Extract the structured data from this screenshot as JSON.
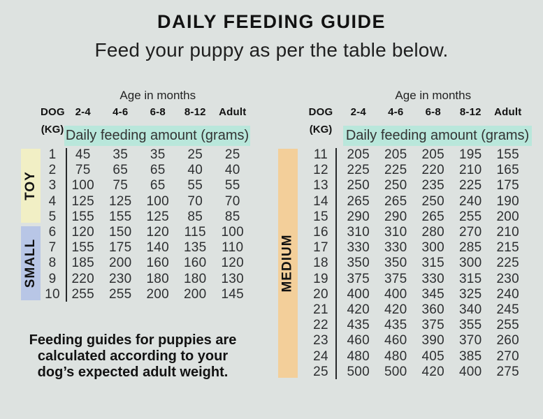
{
  "page": {
    "title": "DAILY FEEDING GUIDE",
    "subtitle": "Feed your puppy as per the table below.",
    "footer_note": "Feeding guides for puppies are calculated according to your dog’s expected adult weight."
  },
  "colors": {
    "background": "#dde2e0",
    "highlight": "#b9e7db",
    "toy": "#f1efc5",
    "small": "#b8c6e6",
    "medium": "#f3cf9a",
    "text": "#1d1d1d"
  },
  "tables": [
    {
      "age_header": "Age in months",
      "dog_label": "DOG",
      "kg_label": "(KG)",
      "age_columns": [
        "2-4",
        "4-6",
        "6-8",
        "8-12",
        "Adult"
      ],
      "amount_label": "Daily feeding amount (grams)",
      "groups": [
        {
          "label": "TOY",
          "color": "toy",
          "row_span": 5
        },
        {
          "label": "SMALL",
          "color": "small",
          "row_span": 5
        }
      ],
      "rows": [
        {
          "kg": "1",
          "values": [
            "45",
            "35",
            "35",
            "25",
            "25"
          ]
        },
        {
          "kg": "2",
          "values": [
            "75",
            "65",
            "65",
            "40",
            "40"
          ]
        },
        {
          "kg": "3",
          "values": [
            "100",
            "75",
            "65",
            "55",
            "55"
          ]
        },
        {
          "kg": "4",
          "values": [
            "125",
            "125",
            "100",
            "70",
            "70"
          ]
        },
        {
          "kg": "5",
          "values": [
            "155",
            "155",
            "125",
            "85",
            "85"
          ]
        },
        {
          "kg": "6",
          "values": [
            "120",
            "150",
            "120",
            "115",
            "100"
          ]
        },
        {
          "kg": "7",
          "values": [
            "155",
            "175",
            "140",
            "135",
            "110"
          ]
        },
        {
          "kg": "8",
          "values": [
            "185",
            "200",
            "160",
            "160",
            "120"
          ]
        },
        {
          "kg": "9",
          "values": [
            "220",
            "230",
            "180",
            "180",
            "130"
          ]
        },
        {
          "kg": "10",
          "values": [
            "255",
            "255",
            "200",
            "200",
            "145"
          ]
        }
      ]
    },
    {
      "age_header": "Age in months",
      "dog_label": "DOG",
      "kg_label": "(KG)",
      "age_columns": [
        "2-4",
        "4-6",
        "6-8",
        "8-12",
        "Adult"
      ],
      "amount_label": "Daily feeding amount (grams)",
      "groups": [
        {
          "label": "MEDIUM",
          "color": "medium",
          "row_span": 15
        }
      ],
      "rows": [
        {
          "kg": "11",
          "values": [
            "205",
            "205",
            "205",
            "195",
            "155"
          ]
        },
        {
          "kg": "12",
          "values": [
            "225",
            "225",
            "220",
            "210",
            "165"
          ]
        },
        {
          "kg": "13",
          "values": [
            "250",
            "250",
            "235",
            "225",
            "175"
          ]
        },
        {
          "kg": "14",
          "values": [
            "265",
            "265",
            "250",
            "240",
            "190"
          ]
        },
        {
          "kg": "15",
          "values": [
            "290",
            "290",
            "265",
            "255",
            "200"
          ]
        },
        {
          "kg": "16",
          "values": [
            "310",
            "310",
            "280",
            "270",
            "210"
          ]
        },
        {
          "kg": "17",
          "values": [
            "330",
            "330",
            "300",
            "285",
            "215"
          ]
        },
        {
          "kg": "18",
          "values": [
            "350",
            "350",
            "315",
            "300",
            "225"
          ]
        },
        {
          "kg": "19",
          "values": [
            "375",
            "375",
            "330",
            "315",
            "230"
          ]
        },
        {
          "kg": "20",
          "values": [
            "400",
            "400",
            "345",
            "325",
            "240"
          ]
        },
        {
          "kg": "21",
          "values": [
            "420",
            "420",
            "360",
            "340",
            "245"
          ]
        },
        {
          "kg": "22",
          "values": [
            "435",
            "435",
            "375",
            "355",
            "255"
          ]
        },
        {
          "kg": "23",
          "values": [
            "460",
            "460",
            "390",
            "370",
            "260"
          ]
        },
        {
          "kg": "24",
          "values": [
            "480",
            "480",
            "405",
            "385",
            "270"
          ]
        },
        {
          "kg": "25",
          "values": [
            "500",
            "500",
            "420",
            "400",
            "275"
          ]
        }
      ]
    }
  ]
}
